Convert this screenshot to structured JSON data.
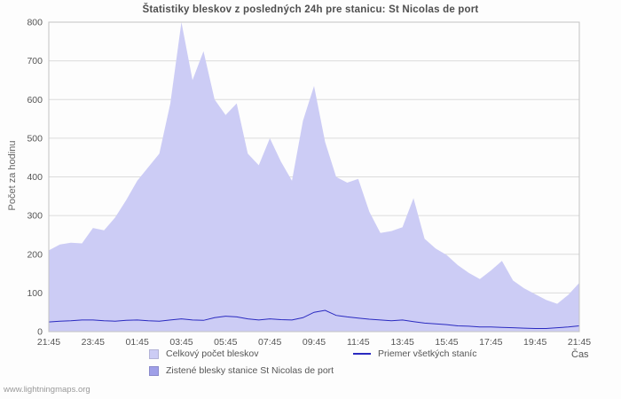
{
  "page": {
    "footer": "www.lightningmaps.org"
  },
  "chart_data": {
    "type": "area",
    "title": "Štatistiky bleskov z posledných 24h pre stanicu: St Nicolas de port",
    "xlabel": "Čas",
    "ylabel": "Počet za hodinu",
    "ylim": [
      0,
      800
    ],
    "ytick_step": 100,
    "grid": "horizontal",
    "legend_position": "bottom",
    "x_tick_labels": [
      "21:45",
      "23:45",
      "01:45",
      "03:45",
      "05:45",
      "07:45",
      "09:45",
      "11:45",
      "13:45",
      "15:45",
      "17:45",
      "19:45",
      "21:45"
    ],
    "x_minutes_step": 30,
    "series": [
      {
        "name": "Celkový počet bleskov",
        "type": "area",
        "color": "#ccccf5",
        "values": [
          210,
          225,
          230,
          228,
          268,
          262,
          295,
          340,
          390,
          425,
          460,
          590,
          800,
          650,
          725,
          600,
          560,
          590,
          460,
          430,
          500,
          440,
          390,
          545,
          635,
          490,
          400,
          385,
          395,
          310,
          255,
          260,
          270,
          345,
          240,
          215,
          198,
          172,
          152,
          136,
          158,
          183,
          132,
          112,
          97,
          82,
          72,
          95,
          126
        ]
      },
      {
        "name": "Zistené blesky stanice St Nicolas de port",
        "type": "area",
        "color": "#9f9fe8",
        "values": [
          0,
          0,
          0,
          0,
          0,
          0,
          0,
          0,
          0,
          0,
          0,
          0,
          0,
          0,
          0,
          0,
          0,
          0,
          0,
          0,
          0,
          0,
          0,
          0,
          0,
          0,
          0,
          0,
          0,
          0,
          0,
          0,
          0,
          0,
          0,
          0,
          0,
          0,
          0,
          0,
          0,
          0,
          0,
          0,
          0,
          0,
          0,
          0,
          0
        ]
      },
      {
        "name": "Priemer všetkých staníc",
        "type": "line",
        "color": "#2a2ac0",
        "values": [
          25,
          27,
          28,
          30,
          30,
          28,
          27,
          29,
          30,
          28,
          27,
          30,
          33,
          30,
          29,
          36,
          40,
          38,
          33,
          30,
          33,
          31,
          30,
          36,
          50,
          55,
          42,
          38,
          35,
          32,
          30,
          28,
          30,
          26,
          22,
          20,
          18,
          15,
          14,
          12,
          12,
          11,
          10,
          9,
          8,
          8,
          10,
          12,
          15
        ]
      }
    ]
  }
}
